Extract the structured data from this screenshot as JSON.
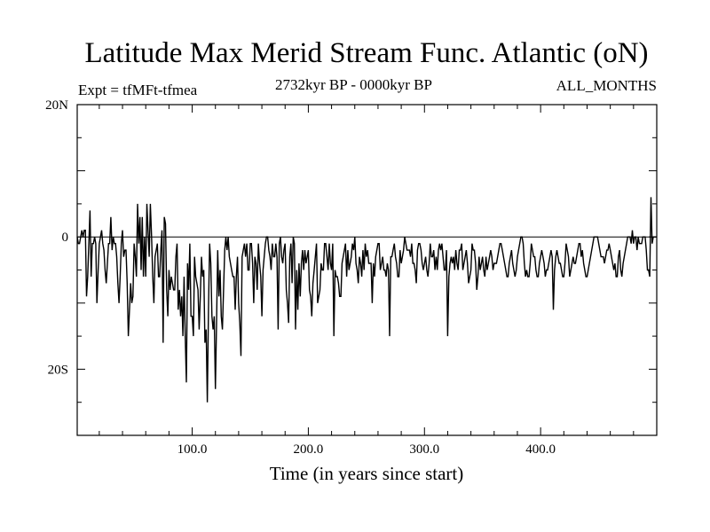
{
  "chart_data": {
    "type": "line",
    "title": "Latitude Max Merid Stream Func. Atlantic (oN)",
    "subtitle_left": "Expt = tfMFt-tfmea",
    "subtitle_center": "2732kyr BP - 0000kyr BP",
    "subtitle_right": "ALL_MONTHS",
    "xlabel": "Time (in years since start)",
    "ylabel": "",
    "xlim": [
      1,
      500
    ],
    "ylim": [
      -30,
      20
    ],
    "xticks": [
      {
        "value": 100,
        "label": "100.0"
      },
      {
        "value": 200,
        "label": "200.0"
      },
      {
        "value": 300,
        "label": "300.0"
      },
      {
        "value": 400,
        "label": "400.0"
      }
    ],
    "yticks": [
      {
        "value": 20,
        "label": "20N"
      },
      {
        "value": 0,
        "label": "0"
      },
      {
        "value": -20,
        "label": "20S"
      }
    ],
    "reference_line": 0,
    "series": [
      {
        "name": "Latitude Max Merid Stream Func",
        "x": [
          1,
          2,
          3,
          4,
          5,
          6,
          7,
          8,
          9,
          10,
          11,
          12,
          13,
          14,
          15,
          16,
          17,
          18,
          19,
          20,
          21,
          22,
          23,
          24,
          25,
          26,
          27,
          28,
          29,
          30,
          31,
          32,
          33,
          34,
          35,
          36,
          37,
          38,
          39,
          40,
          41,
          42,
          43,
          44,
          45,
          46,
          47,
          48,
          49,
          50,
          51,
          52,
          53,
          54,
          55,
          56,
          57,
          58,
          59,
          60,
          61,
          62,
          63,
          64,
          65,
          66,
          67,
          68,
          69,
          70,
          71,
          72,
          73,
          74,
          75,
          76,
          77,
          78,
          79,
          80,
          81,
          82,
          83,
          84,
          85,
          86,
          87,
          88,
          89,
          90,
          91,
          92,
          93,
          94,
          95,
          96,
          97,
          98,
          99,
          100,
          101,
          102,
          103,
          104,
          105,
          106,
          107,
          108,
          109,
          110,
          111,
          112,
          113,
          114,
          115,
          116,
          117,
          118,
          119,
          120,
          121,
          122,
          123,
          124,
          125,
          126,
          127,
          128,
          129,
          130,
          131,
          132,
          133,
          134,
          135,
          136,
          137,
          138,
          139,
          140,
          141,
          142,
          143,
          144,
          145,
          146,
          147,
          148,
          149,
          150,
          151,
          152,
          153,
          154,
          155,
          156,
          157,
          158,
          159,
          160,
          161,
          162,
          163,
          164,
          165,
          166,
          167,
          168,
          169,
          170,
          171,
          172,
          173,
          174,
          175,
          176,
          177,
          178,
          179,
          180,
          181,
          182,
          183,
          184,
          185,
          186,
          187,
          188,
          189,
          190,
          191,
          192,
          193,
          194,
          195,
          196,
          197,
          198,
          199,
          200,
          201,
          202,
          203,
          204,
          205,
          206,
          207,
          208,
          209,
          210,
          211,
          212,
          213,
          214,
          215,
          216,
          217,
          218,
          219,
          220,
          221,
          222,
          223,
          224,
          225,
          226,
          227,
          228,
          229,
          230,
          231,
          232,
          233,
          234,
          235,
          236,
          237,
          238,
          239,
          240,
          241,
          242,
          243,
          244,
          245,
          246,
          247,
          248,
          249,
          250,
          251,
          252,
          253,
          254,
          255,
          256,
          257,
          258,
          259,
          260,
          261,
          262,
          263,
          264,
          265,
          266,
          267,
          268,
          269,
          270,
          271,
          272,
          273,
          274,
          275,
          276,
          277,
          278,
          279,
          280,
          281,
          282,
          283,
          284,
          285,
          286,
          287,
          288,
          289,
          290,
          291,
          292,
          293,
          294,
          295,
          296,
          297,
          298,
          299,
          300,
          301,
          302,
          303,
          304,
          305,
          306,
          307,
          308,
          309,
          310,
          311,
          312,
          313,
          314,
          315,
          316,
          317,
          318,
          319,
          320,
          321,
          322,
          323,
          324,
          325,
          326,
          327,
          328,
          329,
          330,
          331,
          332,
          333,
          334,
          335,
          336,
          337,
          338,
          339,
          340,
          341,
          342,
          343,
          344,
          345,
          346,
          347,
          348,
          349,
          350,
          351,
          352,
          353,
          354,
          355,
          356,
          357,
          358,
          359,
          360,
          361,
          362,
          363,
          364,
          365,
          366,
          367,
          368,
          369,
          370,
          371,
          372,
          373,
          374,
          375,
          376,
          377,
          378,
          379,
          380,
          381,
          382,
          383,
          384,
          385,
          386,
          387,
          388,
          389,
          390,
          391,
          392,
          393,
          394,
          395,
          396,
          397,
          398,
          399,
          400,
          401,
          402,
          403,
          404,
          405,
          406,
          407,
          408,
          409,
          410,
          411,
          412,
          413,
          414,
          415,
          416,
          417,
          418,
          419,
          420,
          421,
          422,
          423,
          424,
          425,
          426,
          427,
          428,
          429,
          430,
          431,
          432,
          433,
          434,
          435,
          436,
          437,
          438,
          439,
          440,
          441,
          442,
          443,
          444,
          445,
          446,
          447,
          448,
          449,
          450,
          451,
          452,
          453,
          454,
          455,
          456,
          457,
          458,
          459,
          460,
          461,
          462,
          463,
          464,
          465,
          466,
          467,
          468,
          469,
          470,
          471,
          472,
          473,
          474,
          475,
          476,
          477,
          478,
          479,
          480,
          481,
          482,
          483,
          484,
          485,
          486,
          487,
          488,
          489,
          490,
          491,
          492,
          493,
          494,
          495,
          496,
          497,
          498,
          499,
          500
        ],
        "values": [
          0,
          -1,
          -1,
          0,
          1,
          0,
          1,
          1,
          -9,
          -6,
          -1,
          4,
          -6,
          -1,
          -1,
          0,
          -1,
          -10,
          -5,
          -1,
          0,
          1,
          -1,
          -2,
          -5,
          -7,
          -4,
          -1,
          -1,
          3,
          -2,
          0,
          -1,
          -1,
          -3,
          -7,
          -10,
          -6,
          -1,
          1,
          -3,
          -2,
          -2,
          -7,
          -15,
          -11,
          -7,
          -10,
          -9,
          -1,
          -3,
          -6,
          5,
          -1,
          3,
          -5,
          3,
          -6,
          0,
          -6,
          5,
          1,
          -3,
          5,
          0,
          -6,
          -10,
          -3,
          -2,
          -1,
          -6,
          -6,
          -2,
          1,
          -16,
          3,
          2,
          -8,
          -12,
          -5,
          -8,
          -6,
          -7,
          -8,
          -8,
          -3,
          -1,
          -11,
          -8,
          -12,
          -9,
          -15,
          -6,
          -15,
          -22,
          -4,
          -8,
          -1,
          -12,
          -12,
          -15,
          -3,
          -6,
          -7,
          -8,
          -14,
          -9,
          -3,
          -6,
          -5,
          -16,
          -14,
          -25,
          -11,
          -1,
          -4,
          -12,
          -14,
          -12,
          -23,
          -13,
          -2,
          -9,
          -5,
          -12,
          -14,
          -8,
          -2,
          0,
          -2,
          0,
          -3,
          -4,
          -5,
          -6,
          -6,
          -11,
          -6,
          -3,
          -10,
          -13,
          -18,
          -3,
          -2,
          -1,
          -3,
          -1,
          -5,
          -5,
          -1,
          -1,
          -4,
          -10,
          -3,
          -4,
          -8,
          -1,
          -4,
          -6,
          -12,
          -5,
          -3,
          -1,
          0,
          0,
          -2,
          -3,
          -5,
          -1,
          -3,
          -3,
          -1,
          -3,
          -14,
          -1,
          0,
          -3,
          -4,
          -2,
          -1,
          -8,
          -10,
          -13,
          -3,
          -1,
          -7,
          0,
          -1,
          -14,
          -5,
          -11,
          -4,
          -9,
          -4,
          -2,
          -5,
          -2,
          -4,
          -3,
          -2,
          -8,
          -9,
          -12,
          -7,
          -5,
          -3,
          -1,
          -10,
          -9,
          -8,
          -4,
          -5,
          -5,
          -1,
          -1,
          -3,
          -5,
          -1,
          -4,
          -5,
          -1,
          -15,
          -5,
          -6,
          -6,
          -7,
          -9,
          -9,
          -4,
          -3,
          -2,
          -1,
          -6,
          -2,
          -5,
          -4,
          -3,
          -1,
          -2,
          0,
          -4,
          -5,
          -7,
          -3,
          -4,
          -6,
          -2,
          -5,
          -1,
          -3,
          -2,
          -4,
          -4,
          -4,
          -10,
          -4,
          -6,
          -3,
          -2,
          -1,
          -1,
          -5,
          -4,
          -3,
          -5,
          -5,
          -6,
          -4,
          -5,
          -15,
          -3,
          -3,
          -2,
          -1,
          -3,
          -4,
          -6,
          -6,
          -2,
          -4,
          -3,
          -2,
          0,
          -1,
          -2,
          -2,
          -2,
          -3,
          -1,
          -4,
          -4,
          -5,
          -7,
          -2,
          -1,
          -1,
          -2,
          -4,
          -5,
          -4,
          -3,
          -5,
          -6,
          -4,
          -1,
          -3,
          -3,
          -2,
          -5,
          -3,
          -5,
          -2,
          -1,
          -2,
          -1,
          -3,
          -5,
          -5,
          -2,
          -15,
          -6,
          -4,
          -3,
          -4,
          -3,
          -5,
          -2,
          -4,
          -5,
          -2,
          -2,
          -1,
          -5,
          -4,
          -3,
          -2,
          -4,
          -7,
          -6,
          -5,
          -1,
          -2,
          -2,
          -4,
          -8,
          -6,
          -3,
          -5,
          -4,
          -3,
          -5,
          -6,
          -3,
          -5,
          -4,
          -3,
          -2,
          -3,
          -5,
          -4,
          -4,
          -4,
          -3,
          -2,
          -1,
          -1,
          -2,
          -3,
          -4,
          -5,
          -6,
          -6,
          -4,
          -3,
          -2,
          -4,
          -5,
          -6,
          -5,
          -3,
          -2,
          -1,
          0,
          0,
          -1,
          -4,
          -6,
          -5,
          -6,
          -6,
          -4,
          -1,
          -2,
          -3,
          -3,
          -5,
          -6,
          -6,
          -4,
          -3,
          -2,
          -3,
          -4,
          -6,
          -5,
          -5,
          -4,
          -3,
          -2,
          -3,
          -11,
          -5,
          -3,
          -2,
          -3,
          -4,
          -4,
          -5,
          -6,
          -6,
          -4,
          -1,
          -2,
          -3,
          -6,
          -5,
          -4,
          -3,
          -4,
          -4,
          -3,
          -2,
          -1,
          -1,
          -3,
          -2,
          -4,
          -5,
          -6,
          -6,
          -5,
          -4,
          -3,
          -2,
          -1,
          0,
          0,
          0,
          0,
          -1,
          -2,
          -3,
          -3,
          -3,
          -4,
          -3,
          -2,
          -2,
          -1,
          -2,
          -3,
          -4,
          -5,
          -4,
          -6,
          -6,
          -3,
          -2,
          -5,
          -6,
          -4,
          -3,
          -2,
          -1,
          0,
          0,
          0,
          -1,
          1,
          -1,
          0,
          0,
          -2,
          0,
          -1,
          -1,
          -1,
          0,
          0,
          0,
          -2,
          -5,
          -5,
          -6,
          6,
          -1,
          0,
          0,
          0,
          0
        ]
      }
    ]
  }
}
